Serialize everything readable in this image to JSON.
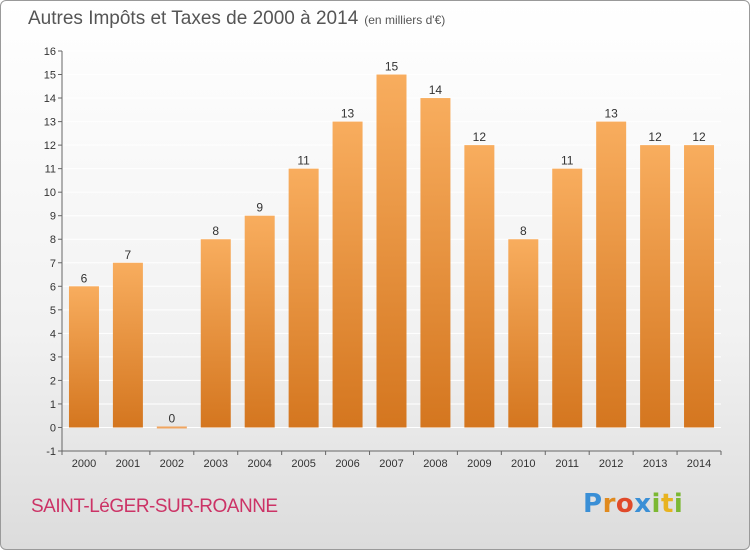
{
  "title": {
    "main": "Autres Impôts et Taxes de 2000 à 2014",
    "unit": "(en milliers d'€)"
  },
  "commune": "SAINT-LéGER-SUR-ROANNE",
  "logo": {
    "letters": [
      "P",
      "r",
      "o",
      "x",
      "i",
      "t",
      "i"
    ],
    "colors": [
      "#3a8fd6",
      "#e08a1e",
      "#e04a2a",
      "#3a8fd6",
      "#7cb833",
      "#e8b320",
      "#7cb833"
    ]
  },
  "colors": {
    "bar_light": "#f8ad5e",
    "bar_dark": "#d4761f",
    "zero_bar": "#f0a560",
    "axis": "#666666",
    "grid": "#ffffff"
  },
  "chart_data": {
    "type": "bar",
    "title": "Autres Impôts et Taxes de 2000 à 2014",
    "categories": [
      "2000",
      "2001",
      "2002",
      "2003",
      "2004",
      "2005",
      "2006",
      "2007",
      "2008",
      "2009",
      "2010",
      "2011",
      "2012",
      "2013",
      "2014"
    ],
    "values": [
      6,
      7,
      0,
      8,
      9,
      11,
      13,
      15,
      14,
      12,
      8,
      11,
      13,
      12,
      12
    ],
    "data_labels": [
      "6",
      "7",
      "0",
      "8",
      "9",
      "11",
      "13",
      "15",
      "14",
      "12",
      "8",
      "11",
      "13",
      "12",
      "12"
    ],
    "xlabel": "",
    "ylabel": "",
    "ylim": [
      -1,
      16
    ],
    "yticks": [
      "-1",
      "0",
      "1",
      "2",
      "3",
      "4",
      "5",
      "6",
      "7",
      "8",
      "9",
      "10",
      "11",
      "12",
      "13",
      "14",
      "15",
      "16"
    ],
    "grid": true,
    "legend": "none"
  }
}
